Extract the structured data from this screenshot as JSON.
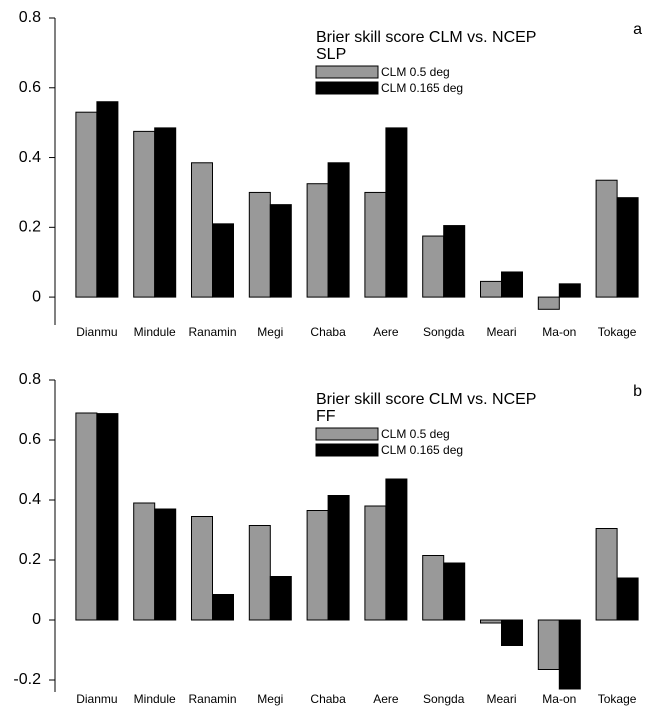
{
  "chart_data": [
    {
      "type": "bar",
      "title": "Brier skill score CLM vs. NCEP",
      "subtitle": "SLP",
      "panel_label": "a",
      "categories": [
        "Dianmu",
        "Mindule",
        "Ranamin",
        "Megi",
        "Chaba",
        "Aere",
        "Songda",
        "Meari",
        "Ma-on",
        "Tokage"
      ],
      "series": [
        {
          "name": "CLM 0.5 deg",
          "color": "#999999",
          "values": [
            0.53,
            0.475,
            0.385,
            0.3,
            0.325,
            0.3,
            0.175,
            0.045,
            -0.035,
            0.335
          ]
        },
        {
          "name": "CLM 0.165 deg",
          "color": "#000000",
          "values": [
            0.56,
            0.485,
            0.21,
            0.265,
            0.385,
            0.485,
            0.205,
            0.072,
            0.038,
            0.285
          ]
        }
      ],
      "ylim": [
        -0.08,
        0.8
      ],
      "yticks": [
        0,
        0.2,
        0.4,
        0.6,
        0.8
      ]
    },
    {
      "type": "bar",
      "title": "Brier skill score CLM vs. NCEP",
      "subtitle": "FF",
      "panel_label": "b",
      "categories": [
        "Dianmu",
        "Mindule",
        "Ranamin",
        "Megi",
        "Chaba",
        "Aere",
        "Songda",
        "Meari",
        "Ma-on",
        "Tokage"
      ],
      "series": [
        {
          "name": "CLM 0.5 deg",
          "color": "#999999",
          "values": [
            0.69,
            0.39,
            0.345,
            0.315,
            0.365,
            0.38,
            0.215,
            -0.01,
            -0.165,
            0.305
          ]
        },
        {
          "name": "CLM 0.165 deg",
          "color": "#000000",
          "values": [
            0.688,
            0.37,
            0.085,
            0.145,
            0.415,
            0.47,
            0.19,
            -0.085,
            -0.23,
            0.14
          ]
        }
      ],
      "ylim": [
        -0.24,
        0.8
      ],
      "yticks": [
        -0.2,
        0,
        0.2,
        0.4,
        0.6,
        0.8
      ]
    }
  ]
}
